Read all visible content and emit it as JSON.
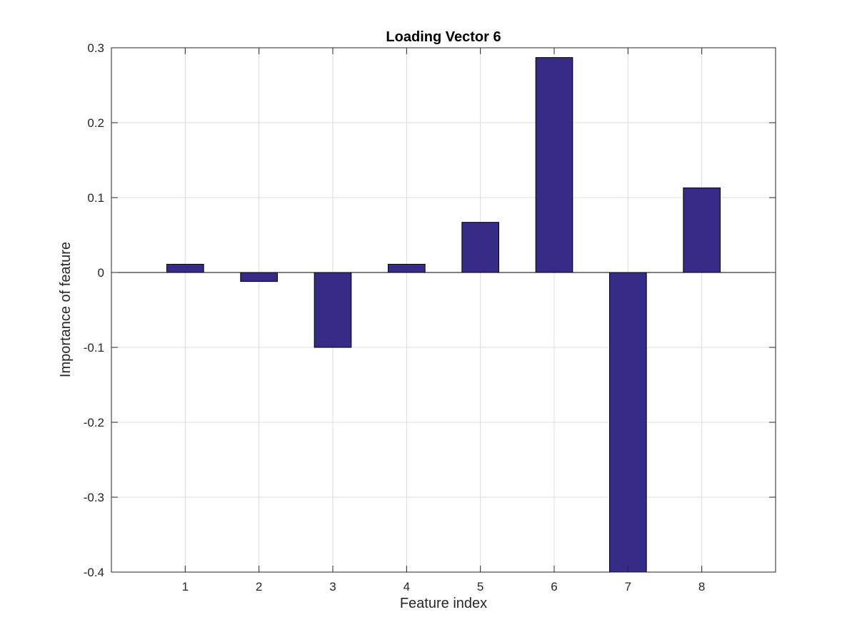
{
  "chart_data": {
    "type": "bar",
    "title": "Loading Vector 6",
    "xlabel": "Feature index",
    "ylabel": "Importance of feature",
    "categories": [
      "1",
      "2",
      "3",
      "4",
      "5",
      "6",
      "7",
      "8"
    ],
    "x": [
      1,
      2,
      3,
      4,
      5,
      6,
      7,
      8
    ],
    "values": [
      0.011,
      -0.012,
      -0.1,
      0.011,
      0.067,
      0.287,
      -0.4,
      0.113
    ],
    "xlim": [
      0,
      9
    ],
    "ylim": [
      -0.4,
      0.3
    ],
    "yticks": [
      -0.4,
      -0.3,
      -0.2,
      -0.1,
      0,
      0.1,
      0.2,
      0.3
    ],
    "ytick_labels": [
      "-0.4",
      "-0.3",
      "-0.2",
      "-0.1",
      "0",
      "0.1",
      "0.2",
      "0.3"
    ],
    "grid": true,
    "bar_color": "#352a86",
    "legend": null
  }
}
